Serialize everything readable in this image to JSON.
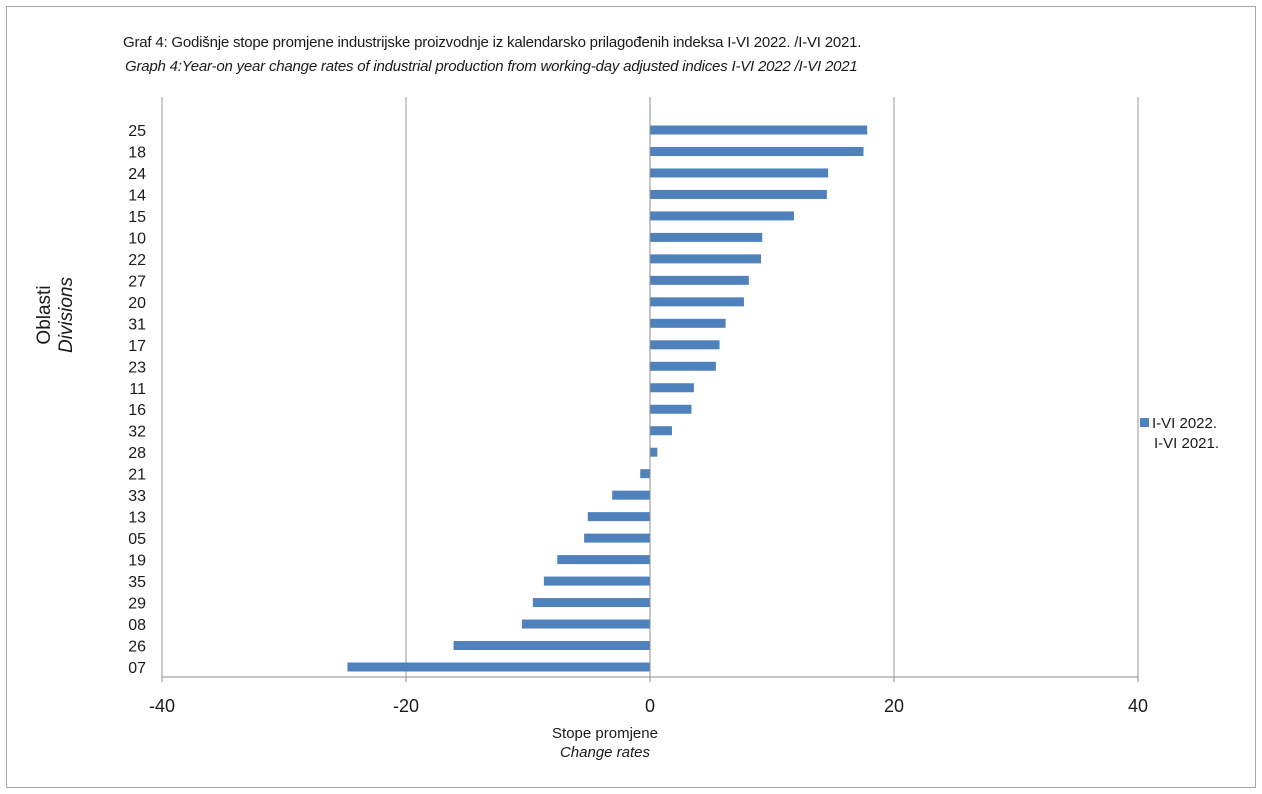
{
  "chart_data": {
    "type": "bar",
    "orientation": "horizontal",
    "title": "Graf 4: Godišnje stope promjene industrijske proizvodnje iz kalendarsko prilagođenih indeksa I-VI 2022. /I-VI 2021.",
    "subtitle": "Graph 4:Year-on year change rates of industrial production from working-day adjusted indices I-VI 2022 /I-VI 2021",
    "ylabel": "Oblasti",
    "ylabel_en": "Divisions",
    "xlabel": "Stope promjene",
    "xlabel_en": "Change rates",
    "xlim": [
      -40,
      40
    ],
    "xticks": [
      -40,
      -20,
      0,
      20,
      40
    ],
    "grid": "vertical",
    "legend": {
      "position": "right",
      "line1": "I-VI 2022.",
      "line2": "I-VI 2021."
    },
    "categories": [
      "25",
      "18",
      "24",
      "14",
      "15",
      "10",
      "22",
      "27",
      "20",
      "31",
      "17",
      "23",
      "11",
      "16",
      "32",
      "28",
      "21",
      "33",
      "13",
      "05",
      "19",
      "35",
      "29",
      "08",
      "26",
      "07"
    ],
    "series": [
      {
        "values": [
          17.8,
          17.5,
          14.6,
          14.5,
          11.8,
          9.2,
          9.1,
          8.1,
          7.7,
          6.2,
          5.7,
          5.4,
          3.6,
          3.4,
          1.8,
          0.6,
          -0.8,
          -3.1,
          -5.1,
          -5.4,
          -7.6,
          -8.7,
          -9.6,
          -10.5,
          -16.1,
          -24.8
        ]
      }
    ],
    "colors": {
      "bar": "#4f81bd",
      "grid": "#9a9a9a",
      "axis": "#8c8c8c"
    }
  }
}
